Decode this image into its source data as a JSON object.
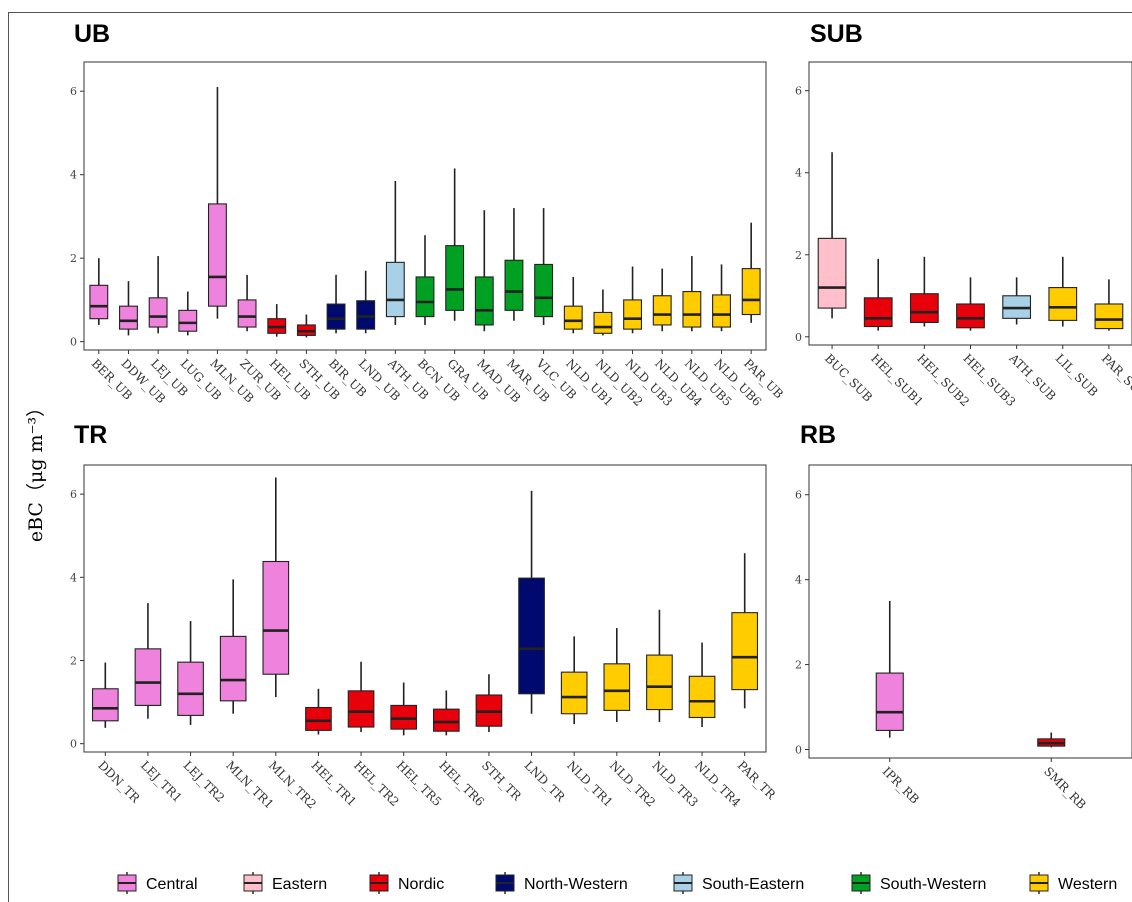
{
  "y_axis_label": "eBC（μg m⁻³）",
  "colors": {
    "Central": "#ee82dc",
    "Eastern": "#ffc0cb",
    "Nordic": "#e8000b",
    "North-Western": "#000a6e",
    "South-Eastern": "#a8d0e6",
    "South-Western": "#00a023",
    "Western": "#ffcc00"
  },
  "legend": [
    "Central",
    "Eastern",
    "Nordic",
    "North-Western",
    "South-Eastern",
    "South-Western",
    "Western"
  ],
  "chart_data": [
    {
      "type": "box",
      "title": "UB",
      "ylim": [
        -0.2,
        6.7
      ],
      "yticks": [
        0,
        2,
        4,
        6
      ],
      "boxes": [
        {
          "label": "BER_UB",
          "group": "Central",
          "min": 0.4,
          "q1": 0.55,
          "median": 0.85,
          "q3": 1.35,
          "max": 2.0
        },
        {
          "label": "DDW_UB",
          "group": "Central",
          "min": 0.15,
          "q1": 0.3,
          "median": 0.5,
          "q3": 0.85,
          "max": 1.45
        },
        {
          "label": "LEJ_UB",
          "group": "Central",
          "min": 0.2,
          "q1": 0.35,
          "median": 0.6,
          "q3": 1.05,
          "max": 2.05
        },
        {
          "label": "LUG_UB",
          "group": "Central",
          "min": 0.15,
          "q1": 0.25,
          "median": 0.45,
          "q3": 0.75,
          "max": 1.2
        },
        {
          "label": "MLN_UB",
          "group": "Central",
          "min": 0.55,
          "q1": 0.85,
          "median": 1.55,
          "q3": 3.3,
          "max": 6.1
        },
        {
          "label": "ZUR_UB",
          "group": "Central",
          "min": 0.25,
          "q1": 0.35,
          "median": 0.6,
          "q3": 1.0,
          "max": 1.6
        },
        {
          "label": "HEL_UB",
          "group": "Nordic",
          "min": 0.12,
          "q1": 0.2,
          "median": 0.35,
          "q3": 0.55,
          "max": 0.9
        },
        {
          "label": "STH_UB",
          "group": "Nordic",
          "min": 0.1,
          "q1": 0.15,
          "median": 0.25,
          "q3": 0.4,
          "max": 0.65
        },
        {
          "label": "BIR_UB",
          "group": "North-Western",
          "min": 0.2,
          "q1": 0.3,
          "median": 0.55,
          "q3": 0.9,
          "max": 1.6
        },
        {
          "label": "LND_UB",
          "group": "North-Western",
          "min": 0.2,
          "q1": 0.3,
          "median": 0.6,
          "q3": 0.98,
          "max": 1.7
        },
        {
          "label": "ATH_UB",
          "group": "South-Eastern",
          "min": 0.4,
          "q1": 0.6,
          "median": 1.0,
          "q3": 1.9,
          "max": 3.85
        },
        {
          "label": "BCN_UB",
          "group": "South-Western",
          "min": 0.4,
          "q1": 0.6,
          "median": 0.95,
          "q3": 1.55,
          "max": 2.55
        },
        {
          "label": "GRA_UB",
          "group": "South-Western",
          "min": 0.5,
          "q1": 0.75,
          "median": 1.25,
          "q3": 2.3,
          "max": 4.15
        },
        {
          "label": "MAD_UB",
          "group": "South-Western",
          "min": 0.25,
          "q1": 0.4,
          "median": 0.75,
          "q3": 1.55,
          "max": 3.15
        },
        {
          "label": "MAR_UB",
          "group": "South-Western",
          "min": 0.5,
          "q1": 0.75,
          "median": 1.2,
          "q3": 1.95,
          "max": 3.2
        },
        {
          "label": "VLC_UB",
          "group": "South-Western",
          "min": 0.4,
          "q1": 0.6,
          "median": 1.05,
          "q3": 1.85,
          "max": 3.2
        },
        {
          "label": "NLD_UB1",
          "group": "Western",
          "min": 0.2,
          "q1": 0.3,
          "median": 0.5,
          "q3": 0.85,
          "max": 1.55
        },
        {
          "label": "NLD_UB2",
          "group": "Western",
          "min": 0.15,
          "q1": 0.2,
          "median": 0.35,
          "q3": 0.7,
          "max": 1.25
        },
        {
          "label": "NLD_UB3",
          "group": "Western",
          "min": 0.2,
          "q1": 0.3,
          "median": 0.55,
          "q3": 1.0,
          "max": 1.8
        },
        {
          "label": "NLD_UB4",
          "group": "Western",
          "min": 0.25,
          "q1": 0.4,
          "median": 0.65,
          "q3": 1.1,
          "max": 1.75
        },
        {
          "label": "NLD_UB5",
          "group": "Western",
          "min": 0.25,
          "q1": 0.35,
          "median": 0.65,
          "q3": 1.2,
          "max": 2.05
        },
        {
          "label": "NLD_UB6",
          "group": "Western",
          "min": 0.25,
          "q1": 0.35,
          "median": 0.65,
          "q3": 1.12,
          "max": 1.85
        },
        {
          "label": "PAR_UB",
          "group": "Western",
          "min": 0.45,
          "q1": 0.65,
          "median": 1.0,
          "q3": 1.75,
          "max": 2.85
        }
      ]
    },
    {
      "type": "box",
      "title": "SUB",
      "ylim": [
        -0.2,
        6.7
      ],
      "yticks": [
        0,
        2,
        4,
        6
      ],
      "boxes": [
        {
          "label": "BUC_SUB",
          "group": "Eastern",
          "min": 0.45,
          "q1": 0.7,
          "median": 1.2,
          "q3": 2.4,
          "max": 4.5
        },
        {
          "label": "HEL_SUB1",
          "group": "Nordic",
          "min": 0.15,
          "q1": 0.25,
          "median": 0.45,
          "q3": 0.95,
          "max": 1.9
        },
        {
          "label": "HEL_SUB2",
          "group": "Nordic",
          "min": 0.25,
          "q1": 0.35,
          "median": 0.6,
          "q3": 1.05,
          "max": 1.95
        },
        {
          "label": "HEL_SUB3",
          "group": "Nordic",
          "min": 0.15,
          "q1": 0.22,
          "median": 0.45,
          "q3": 0.8,
          "max": 1.45
        },
        {
          "label": "ATH_SUB",
          "group": "South-Eastern",
          "min": 0.3,
          "q1": 0.45,
          "median": 0.7,
          "q3": 1.0,
          "max": 1.45
        },
        {
          "label": "LIL_SUB",
          "group": "Western",
          "min": 0.25,
          "q1": 0.4,
          "median": 0.72,
          "q3": 1.2,
          "max": 1.95
        },
        {
          "label": "PAR_SUB",
          "group": "Western",
          "min": 0.15,
          "q1": 0.2,
          "median": 0.42,
          "q3": 0.8,
          "max": 1.4
        }
      ]
    },
    {
      "type": "box",
      "title": "TR",
      "ylim": [
        -0.2,
        6.7
      ],
      "yticks": [
        0,
        2,
        4,
        6
      ],
      "boxes": [
        {
          "label": "DDN_TR",
          "group": "Central",
          "min": 0.38,
          "q1": 0.55,
          "median": 0.85,
          "q3": 1.32,
          "max": 1.95
        },
        {
          "label": "LEJ_TR1",
          "group": "Central",
          "min": 0.6,
          "q1": 0.92,
          "median": 1.47,
          "q3": 2.28,
          "max": 3.38
        },
        {
          "label": "LEJ_TR2",
          "group": "Central",
          "min": 0.45,
          "q1": 0.68,
          "median": 1.2,
          "q3": 1.96,
          "max": 2.95
        },
        {
          "label": "MLN_TR1",
          "group": "Central",
          "min": 0.72,
          "q1": 1.03,
          "median": 1.53,
          "q3": 2.58,
          "max": 3.95
        },
        {
          "label": "MLN_TR2",
          "group": "Central",
          "min": 1.12,
          "q1": 1.67,
          "median": 2.72,
          "q3": 4.38,
          "max": 6.4
        },
        {
          "label": "HEL_TR1",
          "group": "Nordic",
          "min": 0.22,
          "q1": 0.32,
          "median": 0.55,
          "q3": 0.87,
          "max": 1.32
        },
        {
          "label": "HEL_TR2",
          "group": "Nordic",
          "min": 0.28,
          "q1": 0.4,
          "median": 0.77,
          "q3": 1.27,
          "max": 1.97
        },
        {
          "label": "HEL_TR5",
          "group": "Nordic",
          "min": 0.2,
          "q1": 0.35,
          "median": 0.6,
          "q3": 0.92,
          "max": 1.47
        },
        {
          "label": "HEL_TR6",
          "group": "Nordic",
          "min": 0.2,
          "q1": 0.3,
          "median": 0.52,
          "q3": 0.83,
          "max": 1.28
        },
        {
          "label": "STH_TR",
          "group": "Nordic",
          "min": 0.28,
          "q1": 0.42,
          "median": 0.77,
          "q3": 1.17,
          "max": 1.67
        },
        {
          "label": "LND_TR",
          "group": "North-Western",
          "min": 0.72,
          "q1": 1.2,
          "median": 2.28,
          "q3": 3.98,
          "max": 6.08
        },
        {
          "label": "NLD_TR1",
          "group": "Western",
          "min": 0.47,
          "q1": 0.72,
          "median": 1.12,
          "q3": 1.72,
          "max": 2.58
        },
        {
          "label": "NLD_TR2",
          "group": "Western",
          "min": 0.52,
          "q1": 0.8,
          "median": 1.27,
          "q3": 1.92,
          "max": 2.78
        },
        {
          "label": "NLD_TR3",
          "group": "Western",
          "min": 0.52,
          "q1": 0.82,
          "median": 1.37,
          "q3": 2.13,
          "max": 3.22
        },
        {
          "label": "NLD_TR4",
          "group": "Western",
          "min": 0.4,
          "q1": 0.63,
          "median": 1.02,
          "q3": 1.62,
          "max": 2.43
        },
        {
          "label": "PAR_TR",
          "group": "Western",
          "min": 0.85,
          "q1": 1.3,
          "median": 2.08,
          "q3": 3.15,
          "max": 4.58
        }
      ]
    },
    {
      "type": "box",
      "title": "RB",
      "ylim": [
        -0.2,
        6.7
      ],
      "yticks": [
        0,
        2,
        4,
        6
      ],
      "boxes": [
        {
          "label": "IPR_RB",
          "group": "Central",
          "min": 0.28,
          "q1": 0.45,
          "median": 0.88,
          "q3": 1.8,
          "max": 3.5
        },
        {
          "label": "SMR_RB",
          "group": "Nordic",
          "min": 0.05,
          "q1": 0.08,
          "median": 0.15,
          "q3": 0.25,
          "max": 0.4
        }
      ]
    }
  ]
}
